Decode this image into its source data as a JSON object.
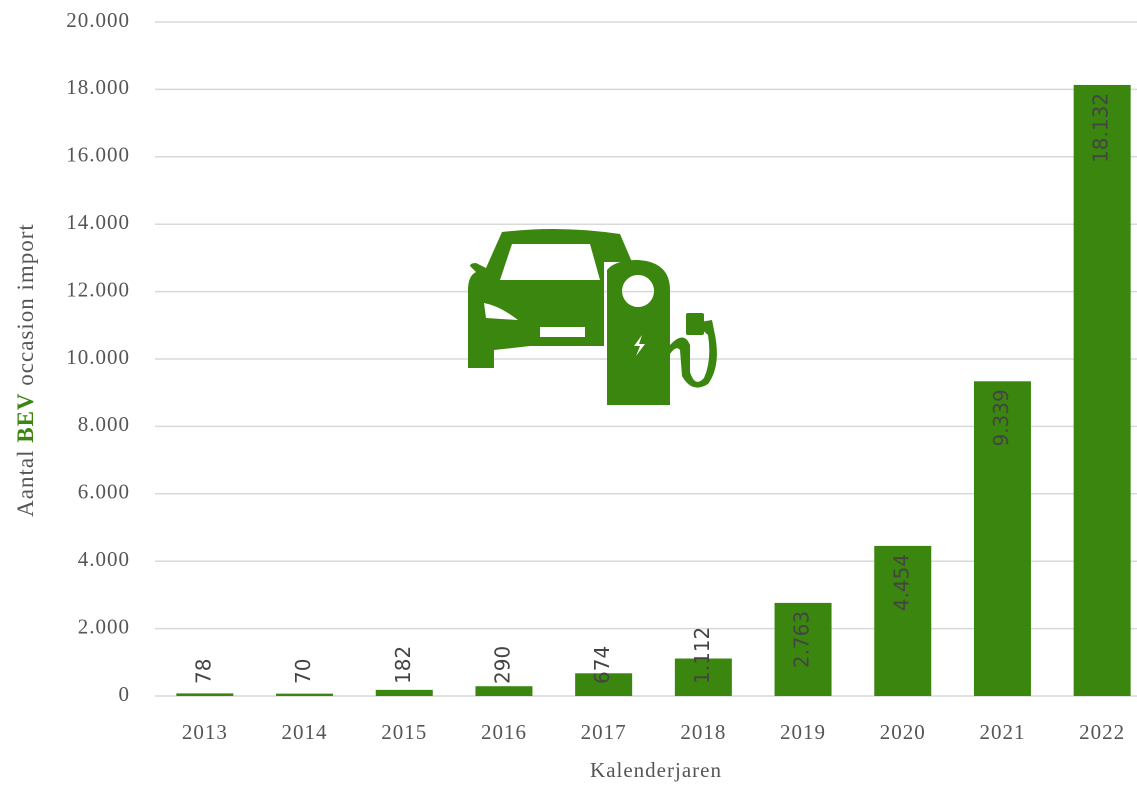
{
  "chart_data": {
    "type": "bar",
    "xlabel": "Kalenderjaren",
    "ylabel_parts": [
      "Aantal",
      "BEV",
      "occasion import"
    ],
    "categories": [
      "2013",
      "2014",
      "2015",
      "2016",
      "2017",
      "2018",
      "2019",
      "2020",
      "2021",
      "2022"
    ],
    "values": [
      78,
      70,
      182,
      290,
      674,
      1112,
      2763,
      4454,
      9339,
      18132
    ],
    "value_labels": [
      "78",
      "70",
      "182",
      "290",
      "674",
      "1.112",
      "2.763",
      "4.454",
      "9.339",
      "18.132"
    ],
    "color": "#3a860f",
    "ylim": [
      0,
      20000
    ],
    "yticks": [
      0,
      {
        "value": 2000,
        "label": "2.000"
      },
      {
        "value": 4000,
        "label": "4.000"
      },
      {
        "value": 6000,
        "label": "6.000"
      },
      {
        "value": 8000,
        "label": "8.000"
      },
      {
        "value": 10000,
        "label": "10.000"
      },
      {
        "value": 12000,
        "label": "12.000"
      },
      {
        "value": 14000,
        "label": "14.000"
      },
      {
        "value": 16000,
        "label": "16.000"
      },
      {
        "value": 18000,
        "label": "18.000"
      },
      {
        "value": 20000,
        "label": "20.000"
      }
    ],
    "grid": true
  }
}
